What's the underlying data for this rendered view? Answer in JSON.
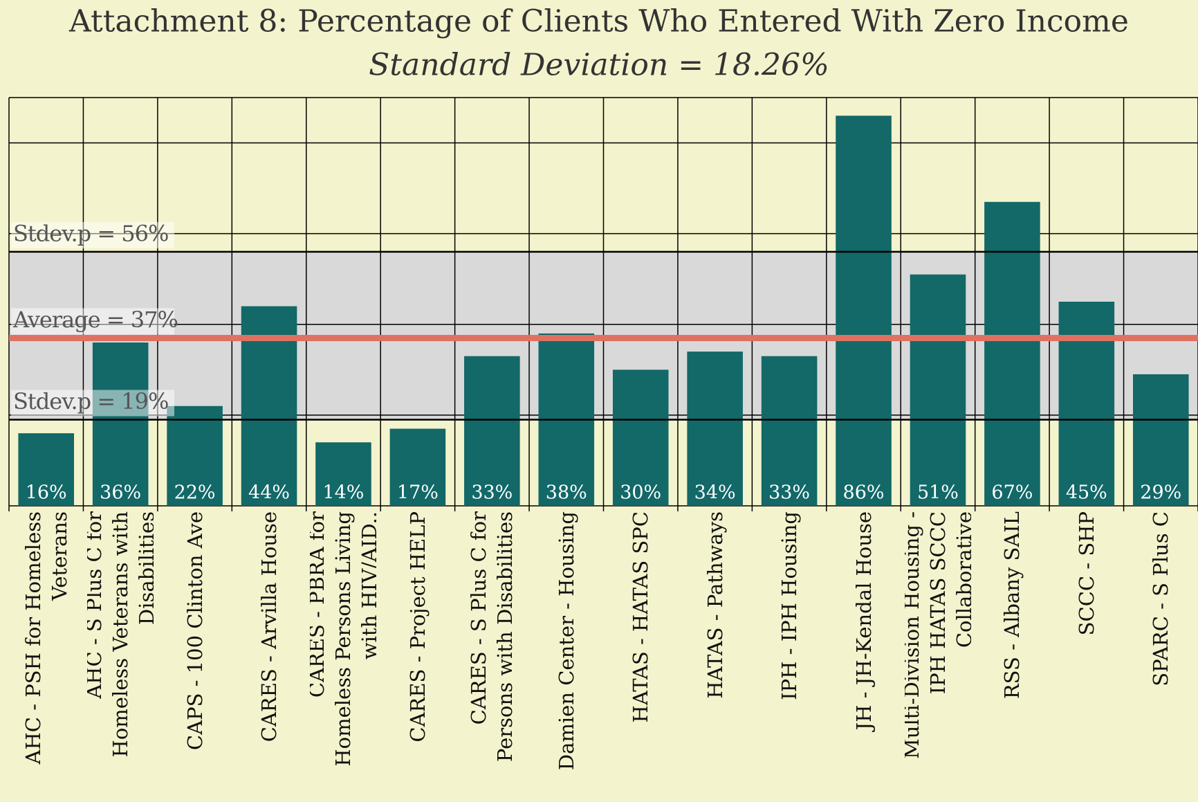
{
  "chart_data": {
    "type": "bar",
    "title": "Attachment 8: Percentage of Clients Who Entered With Zero Income",
    "subtitle": "Standard Deviation = 18.26%",
    "categories": [
      "AHC - PSH for Homeless Veterans",
      "AHC - S Plus C for Homeless Veterans with Disabilities",
      "CAPS - 100 Clinton Ave",
      "CARES - Arvilla House",
      "CARES - PBRA for Homeless Persons Living with HIV/AID..",
      "CARES - Project HELP",
      "CARES - S Plus C for Persons with Disabilities",
      "Damien Center - Housing",
      "HATAS - HATAS SPC",
      "HATAS - Pathways",
      "IPH - IPH Housing",
      "JH - JH-Kendal House",
      "Multi-Division Housing - IPH HATAS SCCC Collaborative",
      "RSS - Albany SAIL",
      "SCCC - SHP",
      "SPARC - S Plus C"
    ],
    "values": [
      16,
      36,
      22,
      44,
      14,
      17,
      33,
      38,
      30,
      34,
      33,
      86,
      51,
      67,
      45,
      29
    ],
    "value_labels": [
      "16%",
      "36%",
      "22%",
      "44%",
      "14%",
      "17%",
      "33%",
      "38%",
      "30%",
      "34%",
      "33%",
      "86%",
      "51%",
      "67%",
      "45%",
      "29%"
    ],
    "color": "#136868",
    "ylim": [
      0,
      90
    ],
    "yticks": [
      0,
      20,
      40,
      60,
      80
    ],
    "grid": true,
    "reference_lines": [
      {
        "label": "Stdev.p = 56%",
        "value": 56,
        "color": "#000000"
      },
      {
        "label": "Average = 37%",
        "value": 37,
        "color": "#e07060"
      },
      {
        "label": "Stdev.p = 19%",
        "value": 19,
        "color": "#000000"
      }
    ],
    "band_color": "#d9d9d9"
  }
}
